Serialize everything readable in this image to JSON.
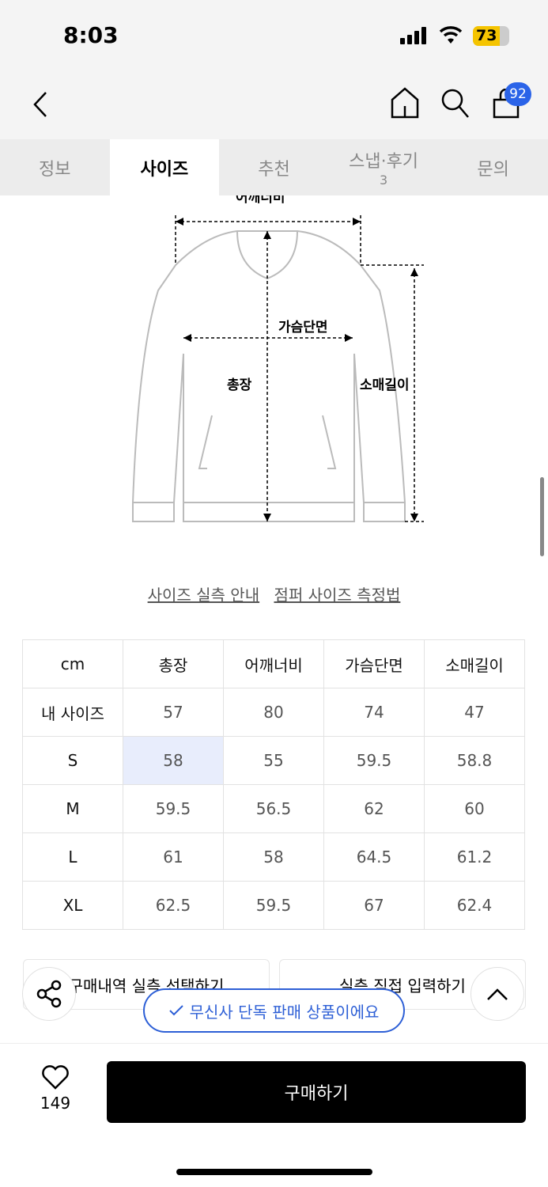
{
  "status": {
    "time": "8:03",
    "battery": "73",
    "battery_level": 73
  },
  "nav": {
    "cart_count": "92"
  },
  "tabs": [
    {
      "label": "정보"
    },
    {
      "label": "사이즈",
      "active": true
    },
    {
      "label": "추천"
    },
    {
      "label": "스냅·후기",
      "count": "3"
    },
    {
      "label": "문의"
    }
  ],
  "diagram": {
    "shoulder": "어깨너비",
    "chest": "가슴단면",
    "length": "총장",
    "sleeve": "소매길이"
  },
  "links": {
    "guide": "사이즈 실측 안내",
    "measure": "점퍼 사이즈 측정법"
  },
  "table": {
    "headers": [
      "cm",
      "총장",
      "어깨너비",
      "가슴단면",
      "소매길이"
    ],
    "rows": [
      [
        "내 사이즈",
        "57",
        "80",
        "74",
        "47"
      ],
      [
        "S",
        "58",
        "55",
        "59.5",
        "58.8"
      ],
      [
        "M",
        "59.5",
        "56.5",
        "62",
        "60"
      ],
      [
        "L",
        "61",
        "58",
        "64.5",
        "61.2"
      ],
      [
        "XL",
        "62.5",
        "59.5",
        "67",
        "62.4"
      ]
    ]
  },
  "buttons": {
    "purchase_history": "구매내역 실측 선택하기",
    "direct_input": "실측 직접 입력하기"
  },
  "exclusive": "무신사 단독 판매 상품이에요",
  "bottom": {
    "likes": "149",
    "buy": "구매하기"
  },
  "colors": {
    "accent": "#2d5fd6",
    "badge": "#2a63e8",
    "highlight": "#e8edfc"
  }
}
